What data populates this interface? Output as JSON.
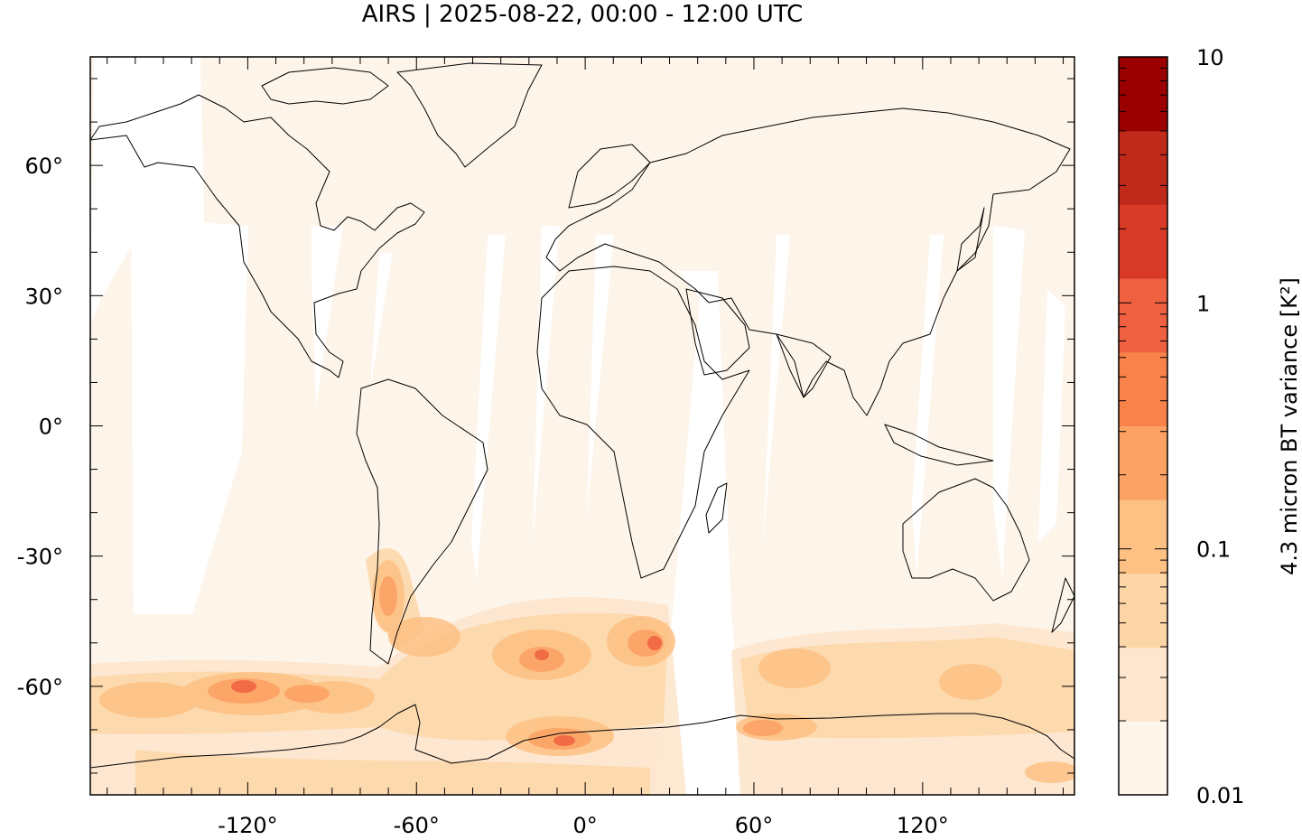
{
  "title": "AIRS | 2025-08-22, 00:00 - 12:00 UTC",
  "map": {
    "projection": "equirectangular",
    "lon_range": [
      -176,
      174
    ],
    "lat_range": [
      -85,
      85
    ],
    "x_ticks": [
      {
        "value": -120,
        "label": "-120°"
      },
      {
        "value": -60,
        "label": "-60°"
      },
      {
        "value": 0,
        "label": "0°"
      },
      {
        "value": 60,
        "label": "60°"
      },
      {
        "value": 120,
        "label": "120°"
      }
    ],
    "y_ticks": [
      {
        "value": 60,
        "label": "60°"
      },
      {
        "value": 30,
        "label": "30°"
      },
      {
        "value": 0,
        "label": "0°"
      },
      {
        "value": -30,
        "label": "-30°"
      },
      {
        "value": -60,
        "label": "-60°"
      }
    ],
    "background_color": "#fef5ea",
    "coastline_color": "#000000"
  },
  "colorbar": {
    "label": "4.3 micron BT variance [K²]",
    "scale": "log",
    "range": [
      0.01,
      10
    ],
    "tick_labels": [
      {
        "value": 10,
        "label": "10"
      },
      {
        "value": 1,
        "label": "1"
      },
      {
        "value": 0.1,
        "label": "0.1"
      },
      {
        "value": 0.01,
        "label": "0.01"
      }
    ],
    "colors": [
      "#fef5eb",
      "#fde6cd",
      "#fdd6a8",
      "#fdc184",
      "#fca264",
      "#f9824a",
      "#ee6040",
      "#d83a28",
      "#c02a1b",
      "#9b0000"
    ]
  }
}
